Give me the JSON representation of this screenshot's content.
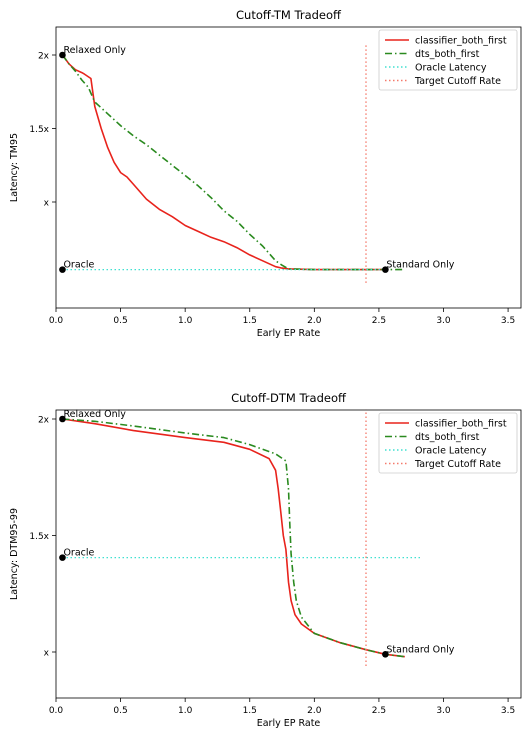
{
  "colors": {
    "classifier": "#e8231c",
    "dts": "#2a8a1f",
    "oracle_line": "#40e0d0",
    "target_line": "#f47a6b",
    "marker": "#000000"
  },
  "chart_data": [
    {
      "type": "line",
      "title": "Cutoff-TM Tradeoff",
      "xlabel": "Early EP Rate",
      "ylabel": "Latency: TM95",
      "xlim": [
        0,
        3.6
      ],
      "ylim": [
        0.35,
        2.1
      ],
      "xticks": [
        0,
        0.5,
        1.0,
        1.5,
        2.0,
        2.5,
        3.0,
        3.5
      ],
      "xtick_labels": [
        "0.0",
        "0.5",
        "1.0",
        "1.5",
        "2.0",
        "2.5",
        "3.0",
        "3.5"
      ],
      "yticks": [
        2,
        1.5,
        1
      ],
      "ytick_labels": [
        "2x",
        "1.5x",
        "x"
      ],
      "legend_position": "top-right",
      "grid": false,
      "series": [
        {
          "name": "classifier_both_first",
          "style": "solid",
          "color_key": "classifier",
          "x": [
            0.05,
            0.1,
            0.15,
            0.2,
            0.22,
            0.27,
            0.3,
            0.35,
            0.4,
            0.45,
            0.5,
            0.55,
            0.6,
            0.7,
            0.8,
            0.9,
            1.0,
            1.1,
            1.2,
            1.3,
            1.4,
            1.5,
            1.6,
            1.7,
            1.75,
            1.8,
            2.0,
            2.3,
            2.55
          ],
          "y": [
            2.0,
            1.94,
            1.9,
            1.88,
            1.87,
            1.84,
            1.65,
            1.5,
            1.37,
            1.27,
            1.2,
            1.17,
            1.12,
            1.02,
            0.95,
            0.9,
            0.84,
            0.8,
            0.76,
            0.73,
            0.69,
            0.64,
            0.6,
            0.56,
            0.55,
            0.545,
            0.54,
            0.54,
            0.54
          ]
        },
        {
          "name": "dts_both_first",
          "style": "dashdot",
          "color_key": "dts",
          "x": [
            0.05,
            0.1,
            0.15,
            0.2,
            0.25,
            0.3,
            0.4,
            0.5,
            0.6,
            0.7,
            0.8,
            0.9,
            1.0,
            1.1,
            1.2,
            1.3,
            1.4,
            1.5,
            1.6,
            1.7,
            1.75,
            1.8,
            2.0,
            2.3,
            2.55,
            2.68
          ],
          "y": [
            2.0,
            1.94,
            1.89,
            1.83,
            1.78,
            1.68,
            1.6,
            1.52,
            1.45,
            1.39,
            1.32,
            1.25,
            1.18,
            1.11,
            1.03,
            0.94,
            0.87,
            0.78,
            0.7,
            0.6,
            0.57,
            0.545,
            0.54,
            0.54,
            0.54,
            0.54
          ]
        },
        {
          "name": "Oracle Latency",
          "style": "dotted",
          "color_key": "oracle_line",
          "x": [
            0.05,
            2.55
          ],
          "y": [
            0.54,
            0.54
          ]
        },
        {
          "name": "Target Cutoff Rate",
          "style": "dotted",
          "color_key": "target_line",
          "x": [
            2.4,
            2.4
          ],
          "y": [
            0.45,
            2.07
          ]
        }
      ],
      "points": [
        {
          "label": "Relaxed Only",
          "x": 0.05,
          "y": 2.0
        },
        {
          "label": "Oracle",
          "x": 0.05,
          "y": 0.54
        },
        {
          "label": "Standard Only",
          "x": 2.55,
          "y": 0.54
        }
      ]
    },
    {
      "type": "line",
      "title": "Cutoff-DTM Tradeoff",
      "xlabel": "Early EP Rate",
      "ylabel": "Latency: DTM95-99",
      "xlim": [
        0,
        3.6
      ],
      "ylim": [
        0.82,
        2.06
      ],
      "xticks": [
        0,
        0.5,
        1.0,
        1.5,
        2.0,
        2.5,
        3.0,
        3.5
      ],
      "xtick_labels": [
        "0.0",
        "0.5",
        "1.0",
        "1.5",
        "2.0",
        "2.5",
        "3.0",
        "3.5"
      ],
      "yticks": [
        2,
        1.5,
        1
      ],
      "ytick_labels": [
        "2x",
        "1.5x",
        "x"
      ],
      "legend_position": "top-right",
      "grid": false,
      "series": [
        {
          "name": "classifier_both_first",
          "style": "solid",
          "color_key": "classifier",
          "x": [
            0.05,
            0.3,
            0.6,
            1.0,
            1.3,
            1.5,
            1.65,
            1.7,
            1.72,
            1.74,
            1.76,
            1.78,
            1.8,
            1.82,
            1.85,
            1.9,
            2.0,
            2.2,
            2.4,
            2.55,
            2.7
          ],
          "y": [
            2.0,
            1.98,
            1.95,
            1.92,
            1.9,
            1.87,
            1.83,
            1.78,
            1.7,
            1.6,
            1.5,
            1.44,
            1.3,
            1.22,
            1.16,
            1.12,
            1.08,
            1.04,
            1.01,
            0.99,
            0.98
          ]
        },
        {
          "name": "dts_both_first",
          "style": "dashdot",
          "color_key": "dts",
          "x": [
            0.05,
            0.3,
            0.6,
            1.0,
            1.3,
            1.5,
            1.7,
            1.78,
            1.8,
            1.81,
            1.82,
            1.84,
            1.86,
            1.9,
            2.0,
            2.2,
            2.4,
            2.55,
            2.7
          ],
          "y": [
            2.0,
            1.99,
            1.97,
            1.94,
            1.92,
            1.89,
            1.85,
            1.82,
            1.7,
            1.55,
            1.42,
            1.3,
            1.22,
            1.15,
            1.08,
            1.04,
            1.01,
            0.99,
            0.98
          ]
        },
        {
          "name": "Oracle Latency",
          "style": "dotted",
          "color_key": "oracle_line",
          "x": [
            0.05,
            2.83
          ],
          "y": [
            1.405,
            1.405
          ]
        },
        {
          "name": "Target Cutoff Rate",
          "style": "dotted",
          "color_key": "target_line",
          "x": [
            2.4,
            2.4
          ],
          "y": [
            0.94,
            2.04
          ]
        }
      ],
      "points": [
        {
          "label": "Relaxed Only",
          "x": 0.05,
          "y": 2.0
        },
        {
          "label": "Oracle",
          "x": 0.05,
          "y": 1.405
        },
        {
          "label": "Standard Only",
          "x": 2.55,
          "y": 0.99
        }
      ]
    }
  ]
}
